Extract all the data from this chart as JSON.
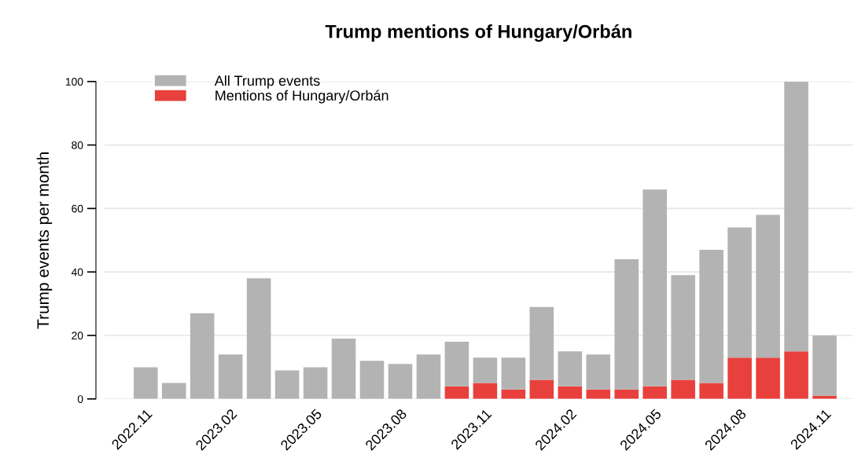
{
  "chart_data": {
    "type": "bar",
    "title": "Trump mentions of Hungary/Orbán",
    "ylabel": "Trump events per month",
    "categories": [
      "2022.11",
      null,
      null,
      "2023.02",
      null,
      null,
      "2023.05",
      null,
      null,
      "2023.08",
      null,
      null,
      "2023.11",
      null,
      null,
      "2024.02",
      null,
      null,
      "2024.05",
      null,
      null,
      "2024.08",
      null,
      null,
      "2024.11"
    ],
    "stacked": true,
    "series": [
      {
        "name": "Mentions of Hungary/Orbán",
        "color": "#e8403d",
        "values": [
          0,
          0,
          0,
          0,
          0,
          0,
          0,
          0,
          0,
          0,
          0,
          4,
          5,
          3,
          6,
          4,
          3,
          3,
          4,
          6,
          5,
          13,
          13,
          15,
          1
        ]
      },
      {
        "name": "All Trump events",
        "color": "#b3b3b3",
        "values": [
          10,
          5,
          27,
          14,
          38,
          9,
          10,
          19,
          12,
          11,
          14,
          14,
          8,
          10,
          23,
          11,
          11,
          41,
          62,
          33,
          42,
          41,
          45,
          85,
          19
        ]
      }
    ],
    "ylim": [
      0,
      100
    ],
    "yticks": [
      0,
      20,
      40,
      60,
      80,
      100
    ],
    "grid": "y",
    "legend": "top left"
  }
}
